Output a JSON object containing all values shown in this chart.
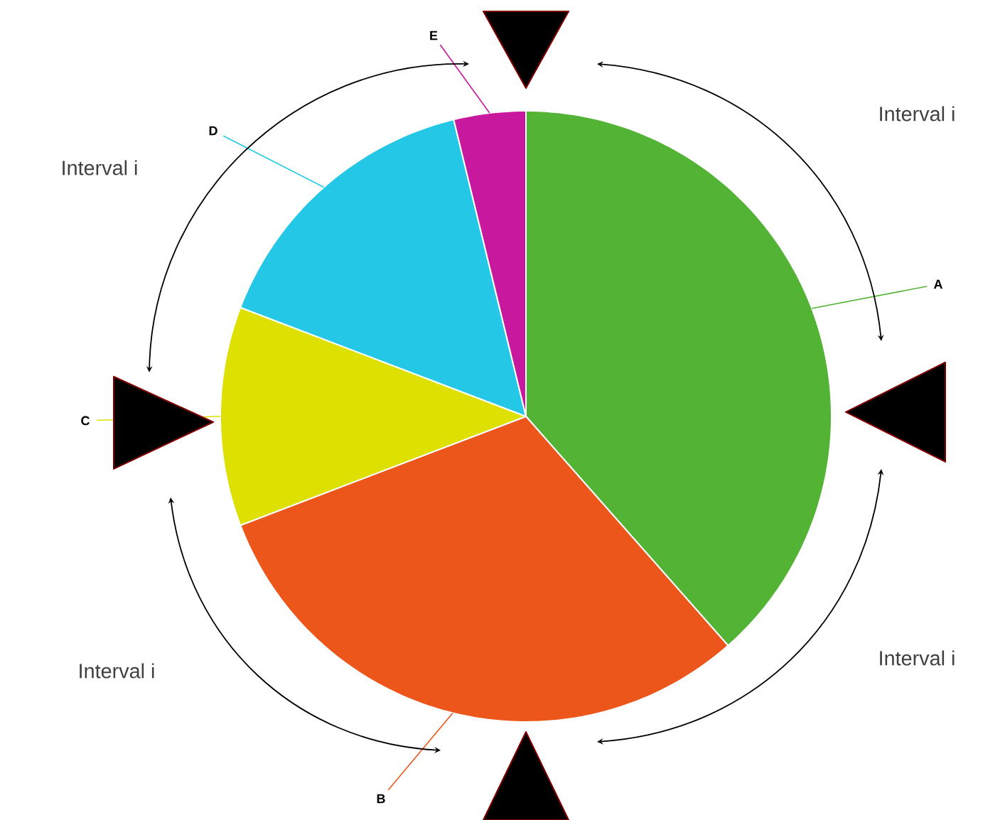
{
  "chart_data": {
    "type": "pie",
    "categories": [
      "A",
      "B",
      "C",
      "D",
      "E"
    ],
    "values": [
      38.5,
      30.7,
      11.6,
      15.4,
      3.8
    ],
    "colors": [
      "#52b335",
      "#ec561b",
      "#dde000",
      "#24c8e6",
      "#c8189e"
    ],
    "annotations": [
      "Interval i",
      "Interval i",
      "Interval i",
      "Interval i"
    ]
  }
}
